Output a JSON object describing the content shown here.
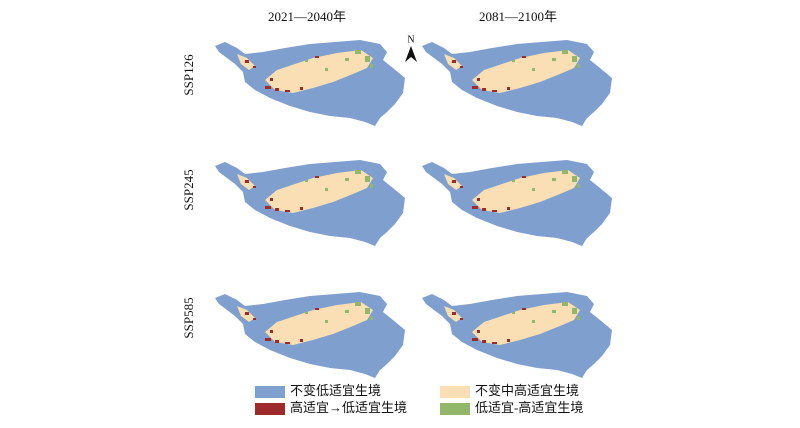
{
  "columns": [
    "2021—2040年",
    "2081—2100年"
  ],
  "rows": [
    "SSP126",
    "SSP245",
    "SSP585"
  ],
  "north": "N",
  "legend": [
    {
      "label": "不变低适宜生境",
      "color": "#7f9fcf"
    },
    {
      "label": "不变中高适宜生境",
      "color": "#f9dfb3"
    },
    {
      "label": "高适宜→低适宜生境",
      "color": "#9e2a2b"
    },
    {
      "label": "低适宜-高适宜生境",
      "color": "#93b76a"
    }
  ]
}
